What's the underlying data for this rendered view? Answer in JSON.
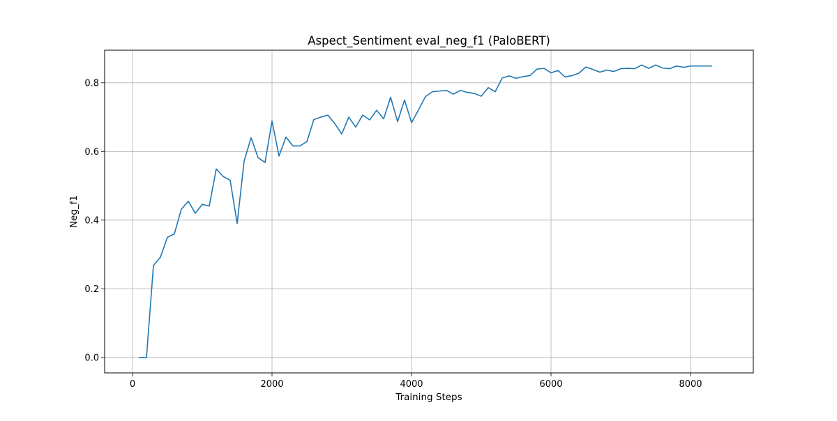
{
  "chart_data": {
    "type": "line",
    "title": "Aspect_Sentiment eval_neg_f1 (PaloBERT)",
    "xlabel": "Training Steps",
    "ylabel": "Neg_f1",
    "xlim": [
      -400,
      8900
    ],
    "ylim": [
      -0.045,
      0.895
    ],
    "x_ticks": [
      0,
      2000,
      4000,
      6000,
      8000
    ],
    "x_tick_labels": [
      "0",
      "2000",
      "4000",
      "6000",
      "8000"
    ],
    "y_ticks": [
      0.0,
      0.2,
      0.4,
      0.6,
      0.8
    ],
    "y_tick_labels": [
      "0.0",
      "0.2",
      "0.4",
      "0.6",
      "0.8"
    ],
    "grid": true,
    "line_color": "#1f77b4",
    "grid_color": "#b0b0b0",
    "series": [
      {
        "x": [
          100,
          200,
          300,
          400,
          500,
          600,
          700,
          800,
          900,
          1000,
          1100,
          1200,
          1300,
          1400,
          1500,
          1600,
          1700,
          1800,
          1900,
          2000,
          2100,
          2200,
          2300,
          2400,
          2500,
          2600,
          2700,
          2800,
          2900,
          3000,
          3100,
          3200,
          3300,
          3400,
          3500,
          3600,
          3700,
          3800,
          3900,
          4000,
          4100,
          4200,
          4300,
          4400,
          4500,
          4600,
          4700,
          4800,
          4900,
          5000,
          5100,
          5200,
          5300,
          5400,
          5500,
          5600,
          5700,
          5800,
          5900,
          6000,
          6100,
          6200,
          6300,
          6400,
          6500,
          6600,
          6700,
          6800,
          6900,
          7000,
          7100,
          7200,
          7300,
          7400,
          7500,
          7600,
          7700,
          7800,
          7900,
          8000,
          8100,
          8200,
          8300
        ],
        "values": [
          0.0,
          0.0,
          0.268,
          0.292,
          0.35,
          0.36,
          0.432,
          0.455,
          0.42,
          0.446,
          0.441,
          0.549,
          0.527,
          0.516,
          0.39,
          0.572,
          0.64,
          0.582,
          0.568,
          0.689,
          0.587,
          0.642,
          0.616,
          0.616,
          0.629,
          0.693,
          0.7,
          0.706,
          0.681,
          0.651,
          0.7,
          0.671,
          0.706,
          0.692,
          0.72,
          0.695,
          0.758,
          0.687,
          0.75,
          0.684,
          0.721,
          0.76,
          0.774,
          0.776,
          0.778,
          0.767,
          0.778,
          0.772,
          0.769,
          0.761,
          0.786,
          0.774,
          0.814,
          0.82,
          0.813,
          0.818,
          0.821,
          0.84,
          0.842,
          0.829,
          0.836,
          0.817,
          0.821,
          0.828,
          0.846,
          0.839,
          0.831,
          0.837,
          0.833,
          0.841,
          0.842,
          0.841,
          0.852,
          0.842,
          0.852,
          0.843,
          0.841,
          0.849,
          0.845,
          0.849,
          0.849,
          0.849,
          0.849
        ]
      }
    ]
  }
}
